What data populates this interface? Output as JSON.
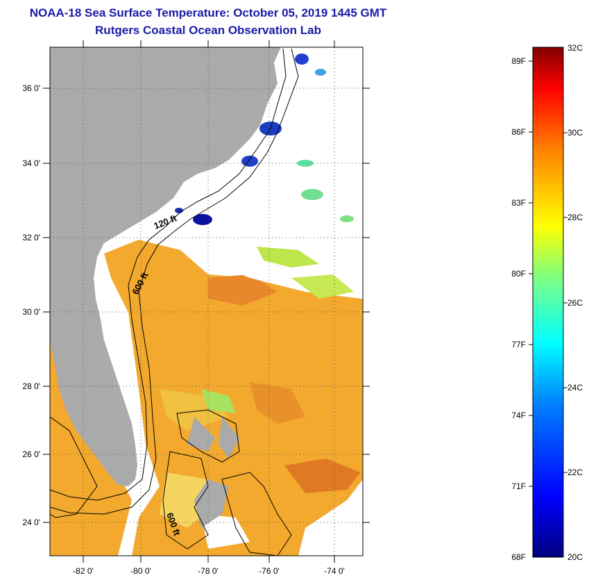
{
  "header": {
    "title": "NOAA-18 Sea Surface Temperature:  October 05, 2019 1445 GMT",
    "subtitle": "Rutgers Coastal Ocean Observation Lab"
  },
  "map": {
    "lat_labels": [
      "36 0'",
      "34 0'",
      "32 0'",
      "30 0'",
      "28 0'",
      "26 0'",
      "24 0'"
    ],
    "lon_labels": [
      "-82 0'",
      "-80 0'",
      "-78 0'",
      "-76 0'",
      "-74 0'"
    ],
    "contours": [
      "120 ft",
      "600 ft",
      "600 ft"
    ],
    "colors": {
      "land": "#aaaaaa",
      "no_data": "#ffffff"
    }
  },
  "colorbar": {
    "fahrenheit_labels": [
      "89F",
      "86F",
      "83F",
      "80F",
      "77F",
      "74F",
      "71F",
      "68F"
    ],
    "celsius_labels": [
      "32C",
      "30C",
      "28C",
      "26C",
      "24C",
      "22C",
      "20C"
    ],
    "range_celsius": [
      20,
      32
    ],
    "gradient": [
      "#00007f",
      "#0000ff",
      "#0080ff",
      "#00ffff",
      "#80ff80",
      "#ffff00",
      "#ff8000",
      "#ff0000",
      "#7f0000"
    ]
  }
}
